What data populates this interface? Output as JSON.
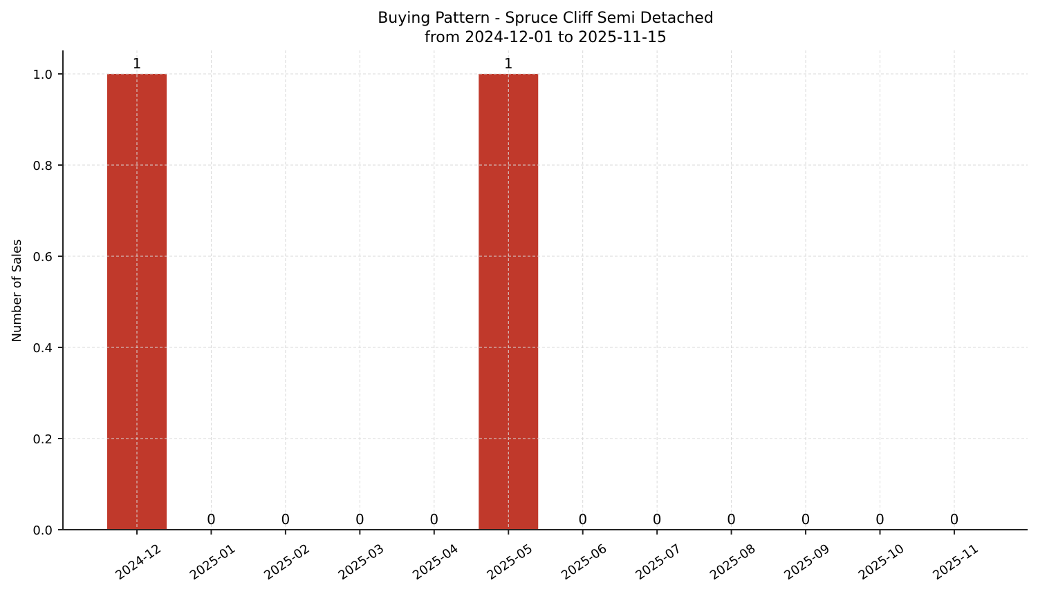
{
  "chart_data": {
    "type": "bar",
    "title": "Buying Pattern - Spruce Cliff Semi Detached",
    "subtitle": "from 2024-12-01 to 2025-11-15",
    "xlabel": "",
    "ylabel": "Number of Sales",
    "categories": [
      "2024-12",
      "2025-01",
      "2025-02",
      "2025-03",
      "2025-04",
      "2025-05",
      "2025-06",
      "2025-07",
      "2025-08",
      "2025-09",
      "2025-10",
      "2025-11"
    ],
    "values": [
      1,
      0,
      0,
      0,
      0,
      1,
      0,
      0,
      0,
      0,
      0,
      0
    ],
    "data_labels": [
      "1",
      "0",
      "0",
      "0",
      "0",
      "1",
      "0",
      "0",
      "0",
      "0",
      "0",
      "0"
    ],
    "ylim": [
      0,
      1.05
    ],
    "yticks": [
      0.0,
      0.2,
      0.4,
      0.6,
      0.8,
      1.0
    ],
    "ytick_labels": [
      "0.0",
      "0.2",
      "0.4",
      "0.6",
      "0.8",
      "1.0"
    ],
    "grid": true,
    "grid_style": "dashed",
    "legend": null,
    "bar_color": "#c0392b",
    "grid_color": "#d9d9d9",
    "axis_color": "#222222"
  }
}
